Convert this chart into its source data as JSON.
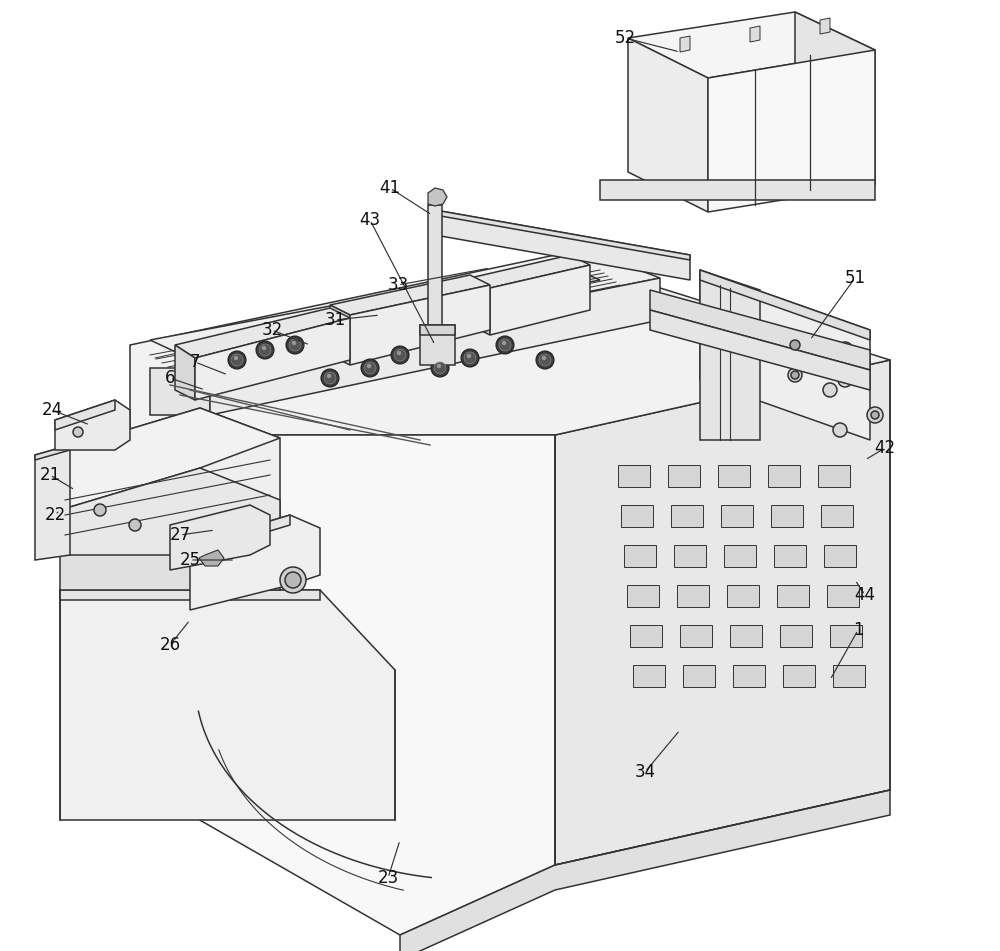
{
  "bg_color": "#ffffff",
  "line_color": "#333333",
  "label_color": "#111111",
  "lw": 1.1,
  "figsize": [
    10.0,
    9.51
  ]
}
